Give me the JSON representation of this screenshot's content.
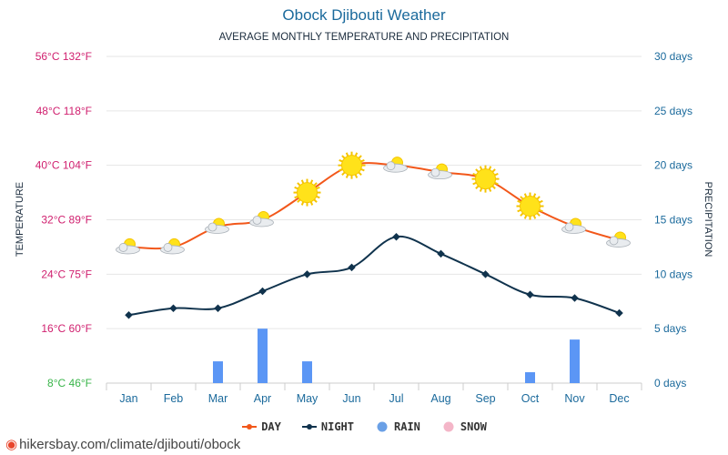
{
  "title": "Obock Djibouti Weather",
  "subtitle": "AVERAGE MONTHLY TEMPERATURE AND PRECIPITATION",
  "footer": {
    "text": "hikersbay.com/climate/djibouti/obock"
  },
  "legend": [
    {
      "label": "DAY",
      "color": "#f2571a",
      "kind": "line"
    },
    {
      "label": "NIGHT",
      "color": "#10334d",
      "kind": "line"
    },
    {
      "label": "RAIN",
      "color": "#6aa0e6",
      "kind": "dot"
    },
    {
      "label": "SNOW",
      "color": "#f4b6c8",
      "kind": "dot"
    }
  ],
  "colors": {
    "day": "#f2571a",
    "night": "#10334d",
    "rain": "#5b96f5",
    "left_axis": "#d0206f",
    "left_axis_bottom": "#39b54a",
    "right_axis": "#1b6a9c",
    "grid": "#e6e6e6"
  },
  "chart_data": {
    "type": "line",
    "categories": [
      "Jan",
      "Feb",
      "Mar",
      "Apr",
      "May",
      "Jun",
      "Jul",
      "Aug",
      "Sep",
      "Oct",
      "Nov",
      "Dec"
    ],
    "left_axis_title": "TEMPERATURE",
    "right_axis_title": "PRECIPITATION",
    "left_ticks": [
      "8°C 46°F",
      "16°C 60°F",
      "24°C 75°F",
      "32°C 89°F",
      "40°C 104°F",
      "48°C 118°F",
      "56°C 132°F"
    ],
    "right_ticks": [
      "0 days",
      "5 days",
      "10 days",
      "15 days",
      "20 days",
      "25 days",
      "30 days"
    ],
    "ylim_temp_c": [
      8,
      56
    ],
    "ylim_days": [
      0,
      30
    ],
    "grid": true,
    "legend_position": "bottom",
    "series": [
      {
        "name": "DAY",
        "values": [
          28,
          28,
          31,
          32,
          36,
          40,
          40,
          39,
          38,
          34,
          31,
          29
        ]
      },
      {
        "name": "NIGHT",
        "values": [
          18,
          19,
          19,
          21.5,
          24,
          25,
          29.5,
          27,
          24,
          21,
          20.5,
          18.3
        ]
      },
      {
        "name": "RAIN",
        "values": [
          0,
          0,
          2,
          5,
          2,
          0,
          0,
          0,
          0,
          1,
          4,
          0
        ]
      },
      {
        "name": "SNOW",
        "values": [
          0,
          0,
          0,
          0,
          0,
          0,
          0,
          0,
          0,
          0,
          0,
          0
        ]
      }
    ],
    "day_icons": [
      "sun-cloud",
      "sun-cloud",
      "sun-cloud",
      "sun-cloud",
      "sun",
      "sun",
      "sun-cloud",
      "sun-cloud",
      "sun",
      "sun",
      "sun-cloud",
      "sun-cloud"
    ]
  }
}
